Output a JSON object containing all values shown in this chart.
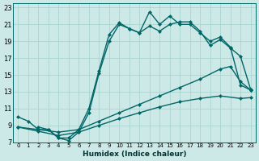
{
  "xlabel": "Humidex (Indice chaleur)",
  "bg_color": "#cce9e7",
  "grid_color": "#aad4d0",
  "line_color": "#006666",
  "xlim": [
    -0.5,
    23.5
  ],
  "ylim": [
    7,
    23.5
  ],
  "xtick_labels": [
    "0",
    "1",
    "2",
    "3",
    "4",
    "5",
    "6",
    "7",
    "8",
    "9",
    "10",
    "11",
    "12",
    "13",
    "14",
    "15",
    "16",
    "17",
    "18",
    "19",
    "20",
    "21",
    "22",
    "23"
  ],
  "xtick_vals": [
    0,
    1,
    2,
    3,
    4,
    5,
    6,
    7,
    8,
    9,
    10,
    11,
    12,
    13,
    14,
    15,
    16,
    17,
    18,
    19,
    20,
    21,
    22,
    23
  ],
  "ytick_vals": [
    7,
    9,
    11,
    13,
    15,
    17,
    19,
    21,
    23
  ],
  "line1_x": [
    0,
    1,
    2,
    3,
    4,
    5,
    6,
    7,
    8,
    9,
    10,
    11,
    12,
    13,
    14,
    15,
    16,
    17,
    18,
    19,
    20,
    21,
    22,
    23
  ],
  "line1_y": [
    10,
    9.5,
    8.5,
    8.5,
    7.5,
    7.2,
    8.2,
    10.5,
    15.2,
    19.0,
    21.0,
    20.5,
    20.0,
    22.5,
    21.0,
    22.0,
    21.0,
    21.0,
    20.0,
    19.0,
    19.5,
    18.3,
    13.8,
    13.2
  ],
  "line2_x": [
    2,
    3,
    4,
    5,
    6,
    7,
    8,
    9,
    10,
    11,
    12,
    13,
    14,
    15,
    16,
    17,
    18,
    19,
    20,
    21,
    22,
    23
  ],
  "line2_y": [
    8.8,
    8.5,
    7.5,
    7.5,
    8.5,
    11.0,
    15.5,
    19.8,
    21.2,
    20.5,
    20.0,
    20.8,
    20.2,
    21.0,
    21.3,
    21.3,
    20.2,
    18.5,
    19.2,
    18.2,
    17.2,
    13.3
  ],
  "line3_x": [
    0,
    2,
    4,
    6,
    8,
    10,
    12,
    14,
    16,
    18,
    20,
    21,
    22,
    23
  ],
  "line3_y": [
    8.8,
    8.5,
    8.2,
    8.5,
    9.5,
    10.5,
    11.5,
    12.5,
    13.5,
    14.5,
    15.7,
    16.0,
    14.2,
    13.2
  ],
  "line4_x": [
    0,
    2,
    4,
    6,
    8,
    10,
    12,
    14,
    16,
    18,
    20,
    22,
    23
  ],
  "line4_y": [
    8.8,
    8.3,
    7.8,
    8.2,
    9.0,
    9.8,
    10.5,
    11.2,
    11.8,
    12.2,
    12.5,
    12.2,
    12.3
  ],
  "marker": "D",
  "marker_size": 2.5,
  "line_width": 1.0
}
